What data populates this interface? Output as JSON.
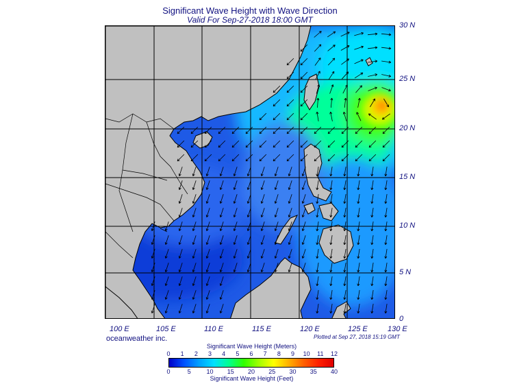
{
  "header": {
    "title": "Significant Wave Height with Wave Direction",
    "subtitle": "Valid For Sep-27-2018 18:00 GMT"
  },
  "map": {
    "lon_range": [
      100,
      130
    ],
    "lat_range": [
      0,
      30
    ],
    "lat_labels": [
      "30 N",
      "25 N",
      "20 N",
      "15 N",
      "10 N",
      "5 N",
      "0"
    ],
    "lon_labels": [
      "100 E",
      "105 E",
      "110 E",
      "115 E",
      "120 E",
      "125 E",
      "130 E"
    ],
    "land_color": "#c0c0c0",
    "grid_color": "#000000",
    "max_wave_region": "near 127-130 E, 21-24 N"
  },
  "footer": {
    "credit": "oceanweather inc.",
    "plotted": "Plotted at Sep 27, 2018 15:19 GMT"
  },
  "colorbar": {
    "meters_title": "Significant Wave Height (Meters)",
    "feet_title": "Significant Wave Height (Feet)",
    "meters_ticks": [
      "0",
      "1",
      "2",
      "3",
      "4",
      "5",
      "6",
      "7",
      "8",
      "9",
      "10",
      "11",
      "12"
    ],
    "feet_ticks": [
      "0",
      "5",
      "10",
      "15",
      "20",
      "25",
      "30",
      "35",
      "40"
    ],
    "colors": [
      "#0000c8",
      "#0050ff",
      "#00a0ff",
      "#00e0ff",
      "#00ff90",
      "#30ff00",
      "#a0ff00",
      "#ffff00",
      "#ffb000",
      "#ff6000",
      "#ff2000",
      "#e00000"
    ]
  }
}
